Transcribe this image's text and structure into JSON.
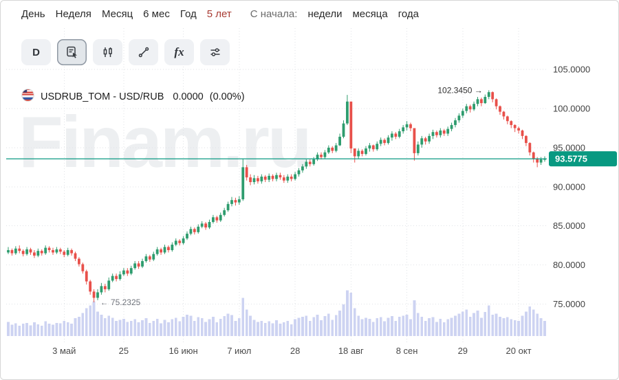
{
  "nav": {
    "timeframes": [
      {
        "label": "День"
      },
      {
        "label": "Неделя"
      },
      {
        "label": "Месяц"
      },
      {
        "label": "6 мес"
      },
      {
        "label": "Год"
      },
      {
        "label": "5 лет",
        "highlighted": true
      }
    ],
    "since_label": "С начала:",
    "since_options": [
      {
        "label": "недели"
      },
      {
        "label": "месяца"
      },
      {
        "label": "года"
      }
    ],
    "highlight_color": "#a83a32"
  },
  "toolbar": {
    "buttons": [
      {
        "icon": "interval-d",
        "label": "D"
      },
      {
        "icon": "drawings-panel-icon",
        "active": true
      },
      {
        "icon": "candlestick-style-icon"
      },
      {
        "icon": "trend-line-icon"
      },
      {
        "icon": "indicators-fx-icon",
        "label": "fx"
      },
      {
        "icon": "settings-sliders-icon"
      }
    ]
  },
  "legend": {
    "symbol_name": "USDRUB_TOM - USD/RUB",
    "price": "0.0000",
    "change_pct": "(0.00%)"
  },
  "watermark": "Finam.ru",
  "chart_data": {
    "type": "candlestick",
    "title": "USDRUB_TOM - USD/RUB",
    "ylim": [
      70.3,
      113.8
    ],
    "y_ticks": [
      105,
      100,
      95,
      90,
      85,
      80,
      75
    ],
    "y_tick_labels": [
      "105.0000",
      "100.0000",
      "95.0000",
      "90.0000",
      "85.0000",
      "80.0000",
      "75.0000"
    ],
    "x_tick_labels": [
      "3 май",
      "25",
      "16 июн",
      "7 июл",
      "28",
      "18 авг",
      "8 сен",
      "29",
      "20 окт"
    ],
    "x_tick_indices": [
      15,
      31,
      47,
      62,
      77,
      92,
      107,
      122,
      137
    ],
    "current_price": 93.5775,
    "current_price_label": "93.5775",
    "annotations": [
      {
        "text": "102.3450 →",
        "candle_index": 129,
        "price": 102.345,
        "side": "left",
        "color": "#2f2f2f"
      },
      {
        "text": "← 75.2325",
        "candle_index": 23,
        "price": 75.2325,
        "side": "right",
        "color": "#6f737b"
      }
    ],
    "first_open": 81.6,
    "candle_format": [
      "close",
      "high",
      "low",
      "volume_rel"
    ],
    "candles": [
      [
        81.9,
        82.3,
        81.4,
        28
      ],
      [
        81.5,
        82.1,
        81.2,
        22
      ],
      [
        82.1,
        82.4,
        81.3,
        25
      ],
      [
        81.8,
        82.5,
        81.5,
        20
      ],
      [
        81.4,
        82.0,
        81.1,
        24
      ],
      [
        82.0,
        82.3,
        81.2,
        26
      ],
      [
        81.6,
        82.2,
        81.3,
        21
      ],
      [
        81.2,
        81.9,
        80.9,
        27
      ],
      [
        81.8,
        82.1,
        81.0,
        23
      ],
      [
        81.5,
        82.0,
        81.2,
        20
      ],
      [
        82.2,
        82.5,
        81.3,
        29
      ],
      [
        81.9,
        82.4,
        81.6,
        24
      ],
      [
        81.6,
        82.2,
        81.3,
        22
      ],
      [
        82.0,
        82.3,
        81.4,
        26
      ],
      [
        81.7,
        82.2,
        81.4,
        25
      ],
      [
        81.3,
        81.9,
        81.0,
        30
      ],
      [
        81.9,
        82.2,
        81.1,
        27
      ],
      [
        81.5,
        82.1,
        81.2,
        24
      ],
      [
        80.8,
        81.7,
        80.5,
        35
      ],
      [
        80.1,
        81.0,
        79.8,
        38
      ],
      [
        79.2,
        80.3,
        78.9,
        45
      ],
      [
        77.9,
        79.4,
        77.5,
        55
      ],
      [
        76.6,
        78.1,
        76.2,
        60
      ],
      [
        75.8,
        76.9,
        75.2325,
        68
      ],
      [
        76.5,
        76.9,
        75.5,
        48
      ],
      [
        77.3,
        77.7,
        76.2,
        42
      ],
      [
        76.9,
        77.6,
        76.5,
        35
      ],
      [
        78.0,
        78.4,
        76.7,
        40
      ],
      [
        78.6,
        78.9,
        77.8,
        36
      ],
      [
        78.2,
        78.9,
        77.9,
        30
      ],
      [
        78.8,
        79.2,
        78.0,
        32
      ],
      [
        79.3,
        79.6,
        78.6,
        34
      ],
      [
        78.9,
        79.6,
        78.6,
        28
      ],
      [
        79.6,
        79.9,
        78.7,
        30
      ],
      [
        80.2,
        80.5,
        79.4,
        33
      ],
      [
        79.8,
        80.5,
        79.5,
        27
      ],
      [
        80.5,
        80.8,
        79.6,
        31
      ],
      [
        81.1,
        81.4,
        80.3,
        35
      ],
      [
        80.7,
        81.3,
        80.4,
        26
      ],
      [
        81.4,
        81.7,
        80.5,
        30
      ],
      [
        82.0,
        82.3,
        81.2,
        34
      ],
      [
        81.6,
        82.2,
        81.3,
        25
      ],
      [
        82.3,
        82.6,
        81.4,
        32
      ],
      [
        81.9,
        82.5,
        81.6,
        27
      ],
      [
        82.6,
        82.9,
        81.7,
        33
      ],
      [
        83.1,
        83.4,
        82.4,
        36
      ],
      [
        82.8,
        83.3,
        82.5,
        29
      ],
      [
        83.4,
        83.7,
        82.6,
        38
      ],
      [
        84.0,
        84.3,
        83.2,
        42
      ],
      [
        84.6,
        84.9,
        83.8,
        40
      ],
      [
        84.2,
        84.8,
        83.9,
        30
      ],
      [
        84.9,
        85.2,
        84.0,
        37
      ],
      [
        85.3,
        85.6,
        84.7,
        35
      ],
      [
        84.8,
        85.5,
        84.5,
        28
      ],
      [
        85.5,
        85.8,
        84.6,
        33
      ],
      [
        86.1,
        86.4,
        85.3,
        38
      ],
      [
        85.7,
        86.3,
        85.4,
        27
      ],
      [
        86.4,
        86.7,
        85.5,
        34
      ],
      [
        87.0,
        87.3,
        86.2,
        39
      ],
      [
        87.8,
        88.1,
        86.8,
        44
      ],
      [
        88.3,
        88.7,
        87.5,
        41
      ],
      [
        88.0,
        88.6,
        87.6,
        30
      ],
      [
        88.4,
        88.8,
        87.7,
        35
      ],
      [
        92.5,
        93.55,
        88.2,
        75
      ],
      [
        91.2,
        92.8,
        90.8,
        52
      ],
      [
        90.6,
        91.6,
        90.2,
        40
      ],
      [
        91.1,
        91.5,
        90.3,
        32
      ],
      [
        90.7,
        91.4,
        90.4,
        28
      ],
      [
        91.3,
        91.6,
        90.4,
        30
      ],
      [
        90.9,
        91.5,
        90.6,
        26
      ],
      [
        91.4,
        91.7,
        90.6,
        29
      ],
      [
        91.0,
        91.6,
        90.7,
        25
      ],
      [
        91.5,
        91.8,
        90.7,
        31
      ],
      [
        91.2,
        91.8,
        90.9,
        24
      ],
      [
        90.8,
        91.5,
        90.5,
        27
      ],
      [
        91.3,
        91.6,
        90.5,
        30
      ],
      [
        91.0,
        91.6,
        90.7,
        23
      ],
      [
        91.6,
        91.9,
        90.8,
        33
      ],
      [
        92.1,
        92.4,
        91.3,
        36
      ],
      [
        92.6,
        92.9,
        91.8,
        38
      ],
      [
        93.2,
        93.5,
        92.3,
        40
      ],
      [
        92.9,
        93.5,
        92.6,
        30
      ],
      [
        93.5,
        93.8,
        92.7,
        37
      ],
      [
        94.1,
        94.4,
        93.3,
        42
      ],
      [
        93.8,
        94.4,
        93.5,
        31
      ],
      [
        94.4,
        94.7,
        93.6,
        39
      ],
      [
        95.0,
        95.3,
        94.2,
        44
      ],
      [
        94.6,
        95.2,
        94.3,
        32
      ],
      [
        95.3,
        95.6,
        94.4,
        41
      ],
      [
        96.4,
        96.8,
        95.2,
        50
      ],
      [
        98.1,
        98.5,
        96.2,
        62
      ],
      [
        100.9,
        101.75,
        97.9,
        90
      ],
      [
        94.9,
        100.9,
        94.3,
        85
      ],
      [
        93.9,
        94.9,
        93.1,
        55
      ],
      [
        94.6,
        94.9,
        93.6,
        40
      ],
      [
        94.2,
        94.8,
        93.9,
        33
      ],
      [
        94.9,
        95.2,
        94.0,
        36
      ],
      [
        95.3,
        95.6,
        94.5,
        34
      ],
      [
        94.8,
        95.4,
        94.5,
        28
      ],
      [
        95.5,
        95.8,
        94.6,
        35
      ],
      [
        96.0,
        96.3,
        95.2,
        37
      ],
      [
        95.6,
        96.2,
        95.3,
        29
      ],
      [
        96.3,
        96.6,
        95.4,
        36
      ],
      [
        96.8,
        97.1,
        95.9,
        39
      ],
      [
        96.4,
        97.0,
        96.1,
        30
      ],
      [
        97.1,
        97.4,
        96.2,
        38
      ],
      [
        97.6,
        97.9,
        96.8,
        40
      ],
      [
        98.0,
        98.4,
        97.2,
        42
      ],
      [
        97.5,
        98.2,
        97.1,
        33
      ],
      [
        94.3,
        97.5,
        93.35,
        70
      ],
      [
        95.4,
        95.8,
        94.0,
        45
      ],
      [
        96.2,
        96.5,
        95.0,
        38
      ],
      [
        95.8,
        96.4,
        95.4,
        30
      ],
      [
        96.5,
        96.8,
        95.5,
        35
      ],
      [
        97.0,
        97.3,
        96.1,
        37
      ],
      [
        96.6,
        97.2,
        96.3,
        28
      ],
      [
        97.2,
        97.5,
        96.3,
        34
      ],
      [
        96.8,
        97.4,
        96.5,
        27
      ],
      [
        97.4,
        97.7,
        96.5,
        33
      ],
      [
        97.9,
        98.2,
        97.1,
        36
      ],
      [
        98.5,
        98.8,
        97.6,
        40
      ],
      [
        99.1,
        99.4,
        98.2,
        44
      ],
      [
        99.7,
        100.0,
        98.8,
        48
      ],
      [
        100.3,
        100.6,
        99.4,
        52
      ],
      [
        99.9,
        100.5,
        99.5,
        38
      ],
      [
        100.6,
        100.9,
        99.7,
        45
      ],
      [
        101.2,
        101.5,
        100.3,
        50
      ],
      [
        100.7,
        101.4,
        100.3,
        36
      ],
      [
        101.5,
        101.8,
        100.6,
        47
      ],
      [
        102.1,
        102.345,
        101.2,
        60
      ],
      [
        101.2,
        102.2,
        100.8,
        42
      ],
      [
        100.3,
        101.3,
        99.9,
        44
      ],
      [
        99.6,
        100.4,
        99.2,
        38
      ],
      [
        99.0,
        99.7,
        98.6,
        35
      ],
      [
        98.4,
        99.1,
        98.0,
        37
      ],
      [
        97.9,
        98.5,
        97.5,
        33
      ],
      [
        97.5,
        98.0,
        97.0,
        31
      ],
      [
        97.2,
        97.7,
        96.8,
        30
      ],
      [
        96.5,
        97.3,
        96.1,
        40
      ],
      [
        95.6,
        96.6,
        95.2,
        48
      ],
      [
        94.4,
        95.7,
        94.0,
        58
      ],
      [
        93.6,
        94.5,
        93.1,
        52
      ],
      [
        93.1,
        93.8,
        92.5,
        44
      ],
      [
        93.5,
        93.8,
        92.8,
        35
      ],
      [
        93.5775,
        93.9,
        93.2,
        30
      ]
    ],
    "colors": {
      "up": "#2e9c6e",
      "down": "#e8504a",
      "volume": "#cdd3f2",
      "grid": "#dfe2e6",
      "price_line": "#089981",
      "tag_bg": "#089981",
      "tag_text": "#ffffff"
    },
    "legend_position": "none",
    "grid": true
  }
}
